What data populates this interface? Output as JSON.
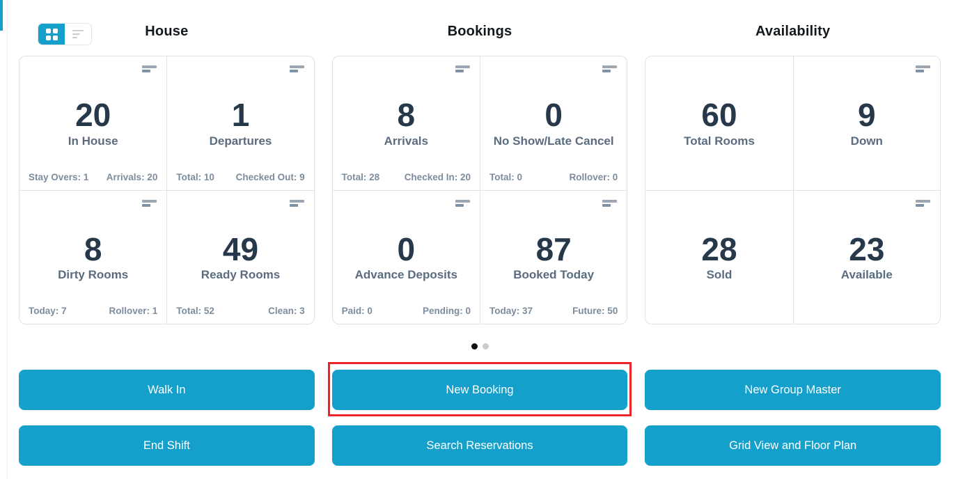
{
  "colors": {
    "accent": "#14a0cb",
    "highlight_red": "#ee2328",
    "stat_value": "#27384a",
    "panel_border": "#dbe2e8",
    "active_dot": "#121212",
    "inactive_dot": "#cbcbcb"
  },
  "view_toggle": {
    "grid_icon": "grid-view-icon",
    "list_icon": "list-view-icon",
    "active": "grid"
  },
  "sections": [
    {
      "title": "House",
      "cards": [
        {
          "value": "20",
          "label": "In House",
          "footer_left": "Stay Overs: 1",
          "footer_right": "Arrivals: 20"
        },
        {
          "value": "1",
          "label": "Departures",
          "footer_left": "Total: 10",
          "footer_right": "Checked Out: 9"
        },
        {
          "value": "8",
          "label": "Dirty Rooms",
          "footer_left": "Today: 7",
          "footer_right": "Rollover: 1"
        },
        {
          "value": "49",
          "label": "Ready Rooms",
          "footer_left": "Total: 52",
          "footer_right": "Clean: 3"
        }
      ]
    },
    {
      "title": "Bookings",
      "cards": [
        {
          "value": "8",
          "label": "Arrivals",
          "footer_left": "Total: 28",
          "footer_right": "Checked In: 20"
        },
        {
          "value": "0",
          "label": "No Show/Late Cancel",
          "footer_left": "Total: 0",
          "footer_right": "Rollover: 0"
        },
        {
          "value": "0",
          "label": "Advance Deposits",
          "footer_left": "Paid: 0",
          "footer_right": "Pending: 0"
        },
        {
          "value": "87",
          "label": "Booked Today",
          "footer_left": "Today: 37",
          "footer_right": "Future: 50"
        }
      ]
    },
    {
      "title": "Availability",
      "cards": [
        {
          "value": "60",
          "label": "Total Rooms"
        },
        {
          "value": "9",
          "label": "Down"
        },
        {
          "value": "28",
          "label": "Sold"
        },
        {
          "value": "23",
          "label": "Available"
        }
      ]
    }
  ],
  "carousel": {
    "page_count": 2,
    "active_page": 1
  },
  "actions": {
    "walk_in": "Walk In",
    "new_booking": "New Booking",
    "new_group_master": "New Group Master",
    "end_shift": "End Shift",
    "search_reservations": "Search Reservations",
    "grid_view_floor_plan": "Grid View and Floor Plan"
  },
  "annotation": {
    "highlighted_action": "New Booking"
  }
}
